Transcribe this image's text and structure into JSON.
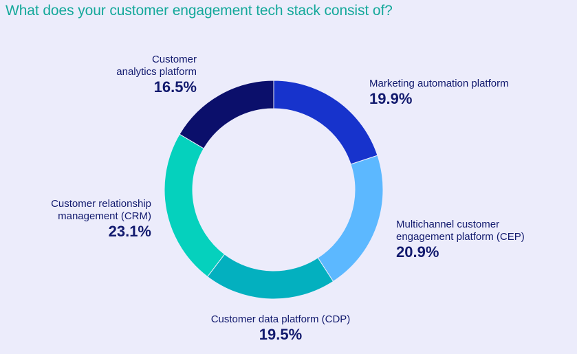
{
  "page": {
    "title": "What does your customer engagement tech stack consist of?"
  },
  "chart_data": {
    "type": "pie",
    "donut": true,
    "title": "What does your customer engagement tech stack consist of?",
    "slices": [
      {
        "label_lines": [
          "Marketing automation platform"
        ],
        "value": 19.9,
        "display": "19.9%",
        "color": "#1733cc"
      },
      {
        "label_lines": [
          "Multichannel customer",
          "engagement platform (CEP)"
        ],
        "value": 20.9,
        "display": "20.9%",
        "color": "#5cb8ff"
      },
      {
        "label_lines": [
          "Customer data platform (CDP)"
        ],
        "value": 19.5,
        "display": "19.5%",
        "color": "#03b0bf"
      },
      {
        "label_lines": [
          "Customer relationship",
          "management (CRM)"
        ],
        "value": 23.1,
        "display": "23.1%",
        "color": "#05d1bd"
      },
      {
        "label_lines": [
          "Customer",
          "analytics platform"
        ],
        "value": 16.5,
        "display": "16.5%",
        "color": "#0b0f6b"
      }
    ]
  }
}
